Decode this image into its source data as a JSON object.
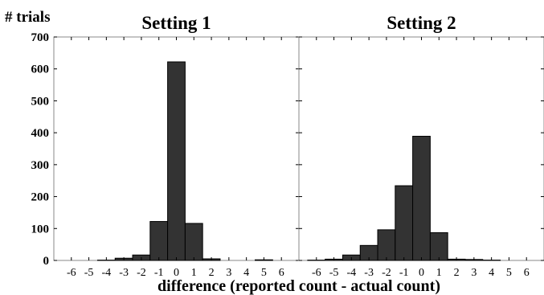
{
  "figure": {
    "ylabel": "# trials",
    "xlabel": "difference (reported count - actual count)",
    "bar_color": "#333333",
    "edge_color": "#000000"
  },
  "chart_data": [
    {
      "type": "bar",
      "title": "Setting 1",
      "ylabel": "# trials",
      "xlabel": "difference (reported count - actual count)",
      "categories": [
        -6,
        -5,
        -4,
        -3,
        -2,
        -1,
        0,
        1,
        2,
        3,
        4,
        5,
        6
      ],
      "values": [
        0,
        0,
        1,
        7,
        17,
        122,
        622,
        116,
        5,
        0,
        0,
        2,
        0
      ],
      "yticks": [
        0,
        100,
        200,
        300,
        400,
        500,
        600,
        700
      ],
      "ylim": [
        0,
        700
      ],
      "xlim": [
        -7,
        7
      ],
      "grid": false
    },
    {
      "type": "bar",
      "title": "Setting 2",
      "xlabel": "difference (reported count - actual count)",
      "categories": [
        -6,
        -5,
        -4,
        -3,
        -2,
        -1,
        0,
        1,
        2,
        3,
        4,
        5,
        6
      ],
      "values": [
        1,
        4,
        17,
        47,
        96,
        234,
        389,
        87,
        4,
        3,
        1,
        0,
        0
      ],
      "yticks": [
        0,
        100,
        200,
        300,
        400,
        500,
        600,
        700
      ],
      "ylim": [
        0,
        700
      ],
      "xlim": [
        -7,
        7
      ],
      "grid": false
    }
  ]
}
